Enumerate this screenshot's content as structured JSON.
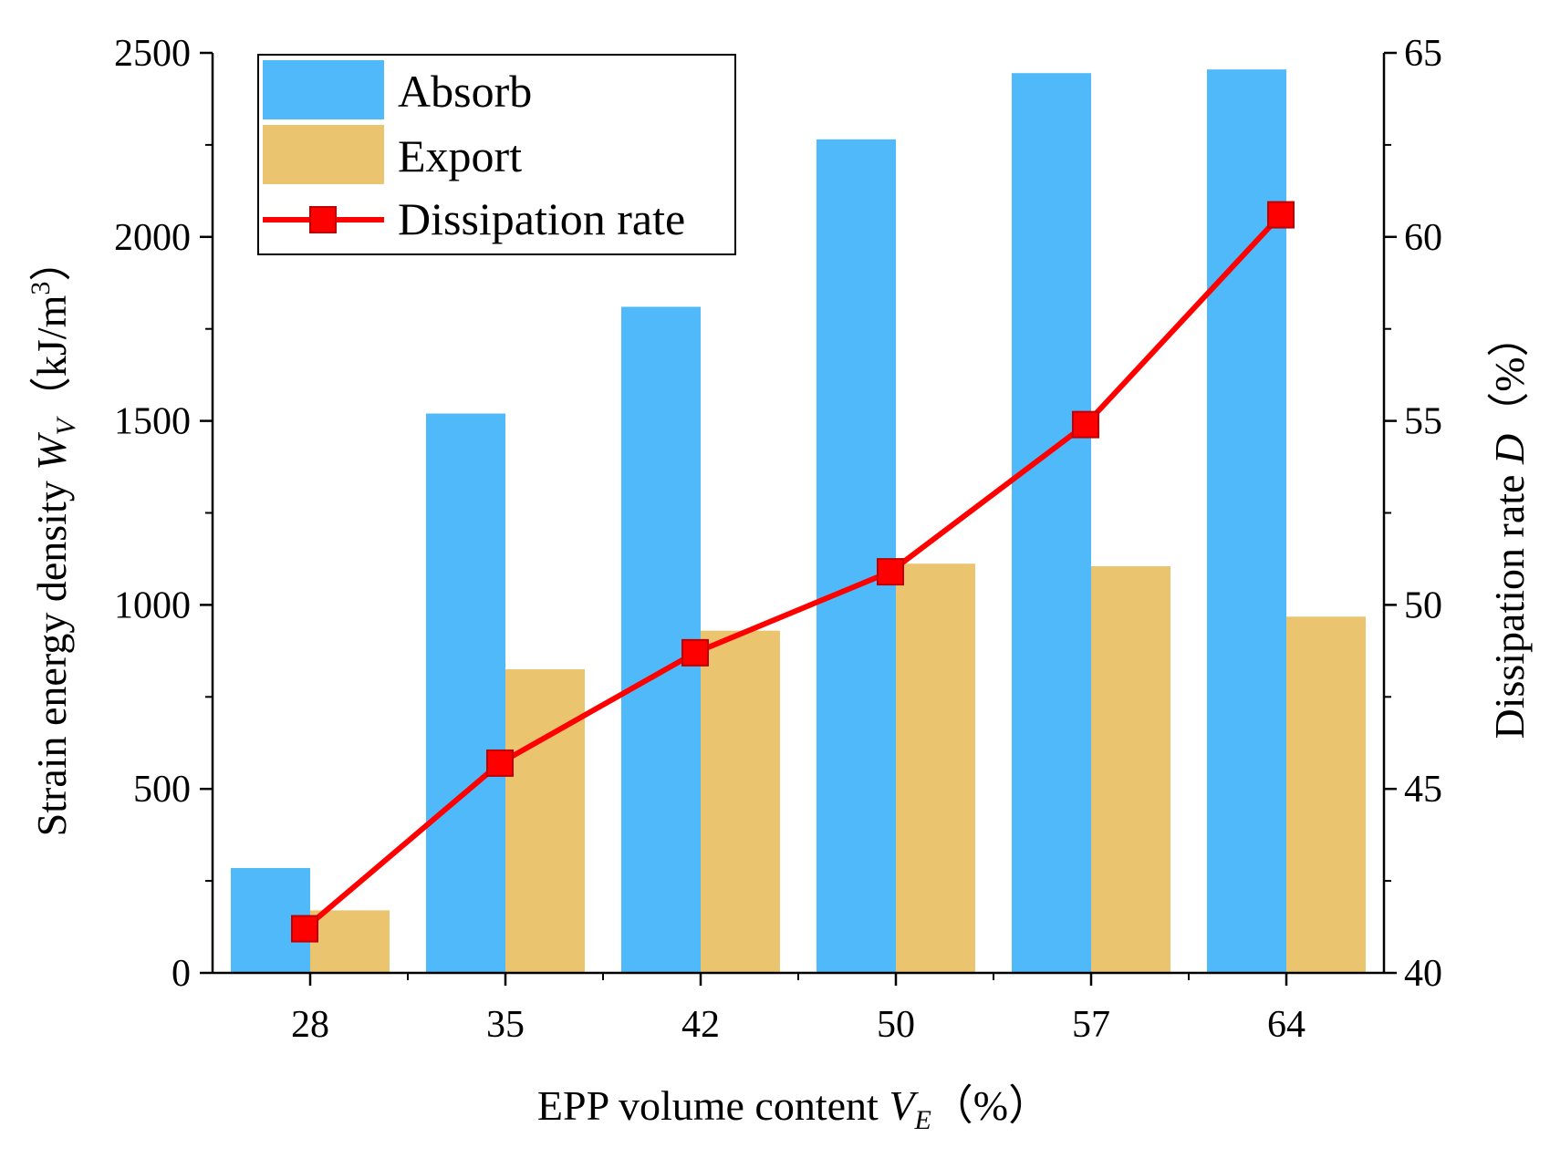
{
  "chart_data": {
    "type": "bar",
    "categories": [
      "28",
      "35",
      "42",
      "50",
      "57",
      "64"
    ],
    "series": [
      {
        "name": "Absorb",
        "axis": "left",
        "kind": "bar",
        "color": "#4FB9FA",
        "values": [
          285,
          1520,
          1810,
          2265,
          2445,
          2455
        ]
      },
      {
        "name": "Export",
        "axis": "left",
        "kind": "bar",
        "color": "#EAC46E",
        "values": [
          170,
          825,
          930,
          1112,
          1105,
          968
        ]
      },
      {
        "name": "Dissipation rate",
        "axis": "right",
        "kind": "line",
        "marker": "square",
        "color": "#FF0000",
        "values": [
          41.2,
          45.7,
          48.7,
          50.9,
          54.9,
          60.6
        ]
      }
    ],
    "y_left": {
      "ylim": [
        0,
        2500
      ],
      "ticks": [
        "0",
        "500",
        "1000",
        "1500",
        "2000",
        "2500"
      ],
      "label_main": "Strain energy density ",
      "label_var": "W",
      "label_sub": "V",
      "label_unit": "（kJ/m",
      "label_sup": "3",
      "label_close": "）"
    },
    "y_right": {
      "ylim": [
        40,
        65
      ],
      "ticks": [
        "40",
        "45",
        "50",
        "55",
        "60",
        "65"
      ],
      "label_main": "Dissipation rate ",
      "label_var": "D",
      "label_unit": "（%）"
    },
    "x_axis": {
      "label_main": "EPP volume content ",
      "label_var": "V",
      "label_sub": "E",
      "label_unit": "（%）"
    },
    "legend": {
      "position": "top-left",
      "items": [
        "Absorb",
        "Export",
        "Dissipation rate"
      ]
    }
  }
}
